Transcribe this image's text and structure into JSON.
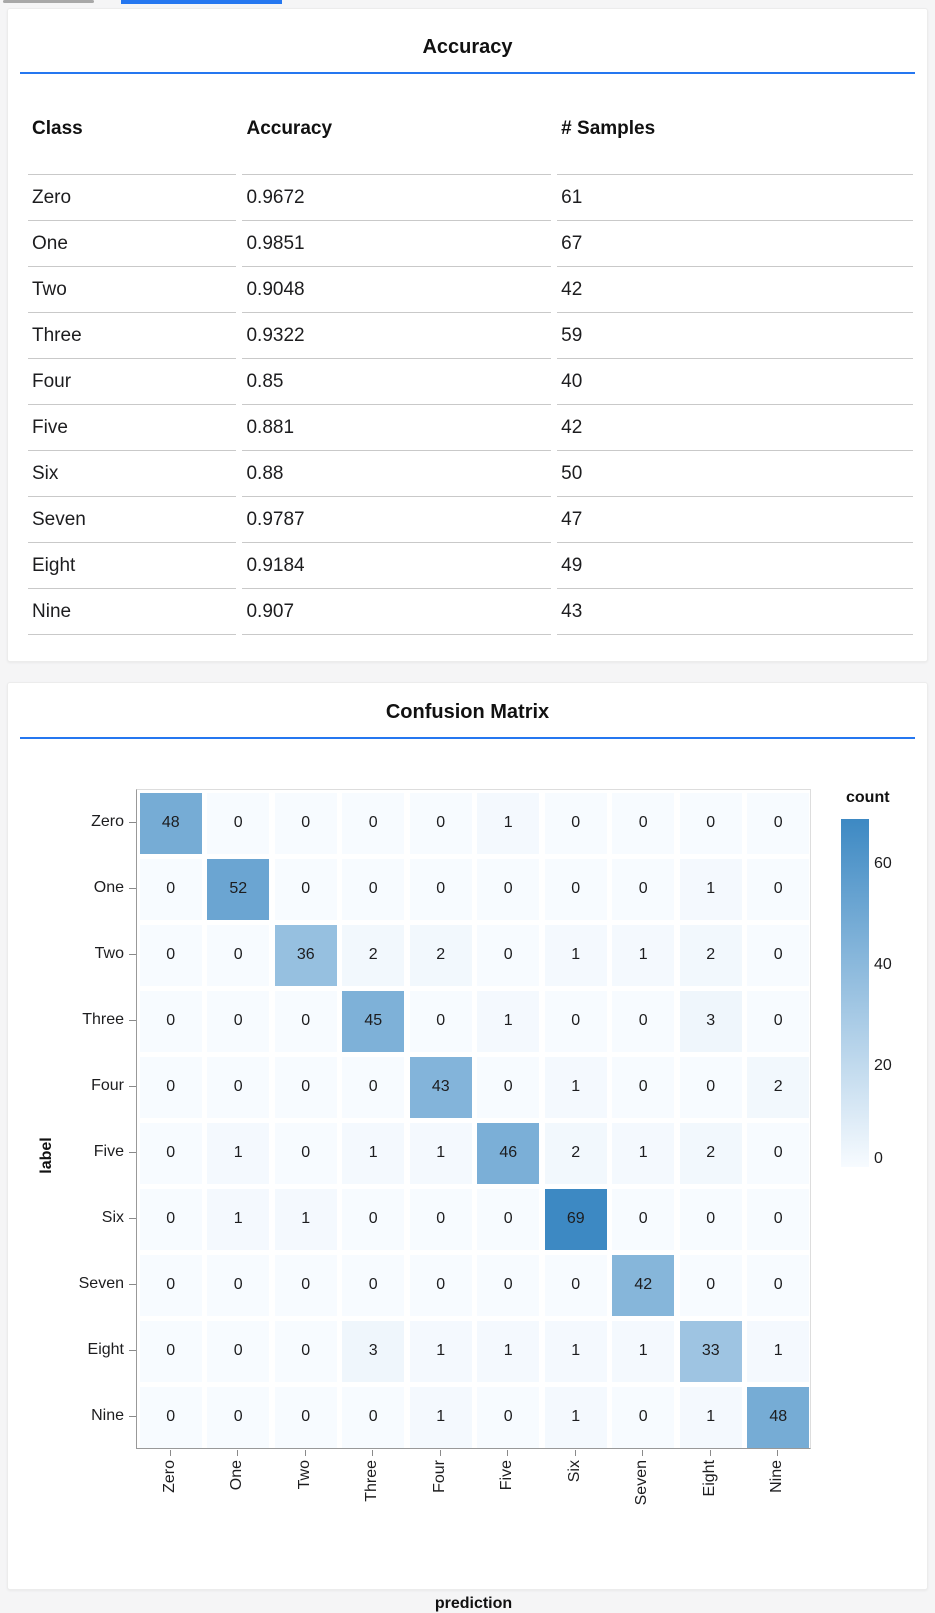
{
  "colors": {
    "accent_blue": "#2577f0",
    "page_background": "#f5f5f6",
    "table_border": "#c9c9c9",
    "heatmap_min": "#f7fbff",
    "heatmap_max": "#3d89c3"
  },
  "accuracy_card": {
    "title": "Accuracy",
    "columns": [
      "Class",
      "Accuracy",
      "# Samples"
    ],
    "rows": [
      [
        "Zero",
        "0.9672",
        "61"
      ],
      [
        "One",
        "0.9851",
        "67"
      ],
      [
        "Two",
        "0.9048",
        "42"
      ],
      [
        "Three",
        "0.9322",
        "59"
      ],
      [
        "Four",
        "0.85",
        "40"
      ],
      [
        "Five",
        "0.881",
        "42"
      ],
      [
        "Six",
        "0.88",
        "50"
      ],
      [
        "Seven",
        "0.9787",
        "47"
      ],
      [
        "Eight",
        "0.9184",
        "49"
      ],
      [
        "Nine",
        "0.907",
        "43"
      ]
    ]
  },
  "confusion": {
    "title": "Confusion Matrix",
    "chart_data": {
      "type": "heatmap",
      "title": "Confusion Matrix",
      "xlabel": "prediction",
      "ylabel": "label",
      "categories": [
        "Zero",
        "One",
        "Two",
        "Three",
        "Four",
        "Five",
        "Six",
        "Seven",
        "Eight",
        "Nine"
      ],
      "matrix": [
        [
          48,
          0,
          0,
          0,
          0,
          1,
          0,
          0,
          0,
          0
        ],
        [
          0,
          52,
          0,
          0,
          0,
          0,
          0,
          0,
          1,
          0
        ],
        [
          0,
          0,
          36,
          2,
          2,
          0,
          1,
          1,
          2,
          0
        ],
        [
          0,
          0,
          0,
          45,
          0,
          1,
          0,
          0,
          3,
          0
        ],
        [
          0,
          0,
          0,
          0,
          43,
          0,
          1,
          0,
          0,
          2
        ],
        [
          0,
          1,
          0,
          1,
          1,
          46,
          2,
          1,
          2,
          0
        ],
        [
          0,
          1,
          1,
          0,
          0,
          0,
          69,
          0,
          0,
          0
        ],
        [
          0,
          0,
          0,
          0,
          0,
          0,
          0,
          42,
          0,
          0
        ],
        [
          0,
          0,
          0,
          3,
          1,
          1,
          1,
          1,
          33,
          1
        ],
        [
          0,
          0,
          0,
          0,
          1,
          0,
          1,
          0,
          1,
          48
        ]
      ],
      "legend": {
        "title": "count",
        "ticks": [
          60,
          40,
          20,
          0
        ],
        "domain": [
          0,
          69
        ]
      }
    }
  }
}
